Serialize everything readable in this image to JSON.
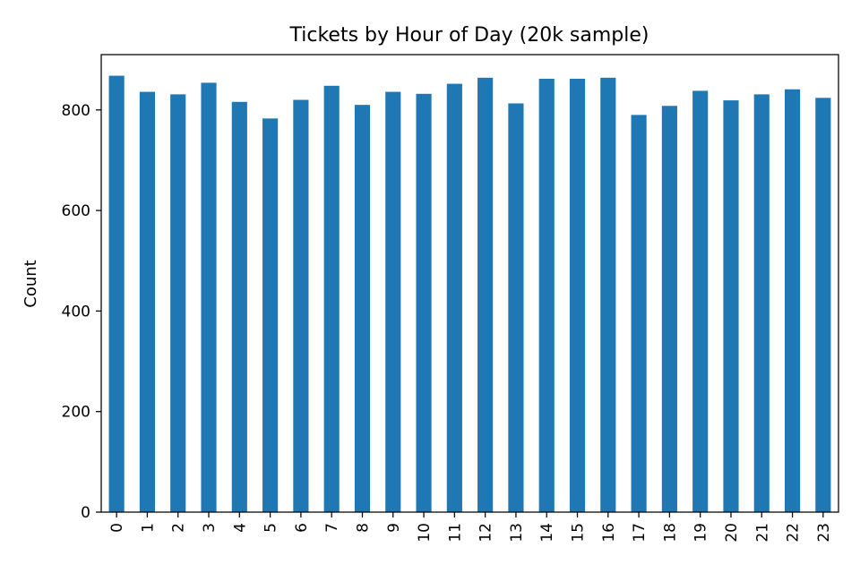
{
  "chart_data": {
    "type": "bar",
    "title": "Tickets by Hour of Day (20k sample)",
    "xlabel": "",
    "ylabel": "Count",
    "categories": [
      "0",
      "1",
      "2",
      "3",
      "4",
      "5",
      "6",
      "7",
      "8",
      "9",
      "10",
      "11",
      "12",
      "13",
      "14",
      "15",
      "16",
      "17",
      "18",
      "19",
      "20",
      "21",
      "22",
      "23"
    ],
    "values": [
      868,
      836,
      831,
      854,
      816,
      783,
      820,
      848,
      810,
      836,
      832,
      852,
      864,
      813,
      862,
      862,
      864,
      790,
      808,
      838,
      819,
      831,
      841,
      824
    ],
    "ylim": [
      0,
      910
    ],
    "yticks": [
      0,
      200,
      400,
      600,
      800
    ],
    "bar_color": "#1f77b4",
    "grid": false,
    "legend": "none"
  }
}
